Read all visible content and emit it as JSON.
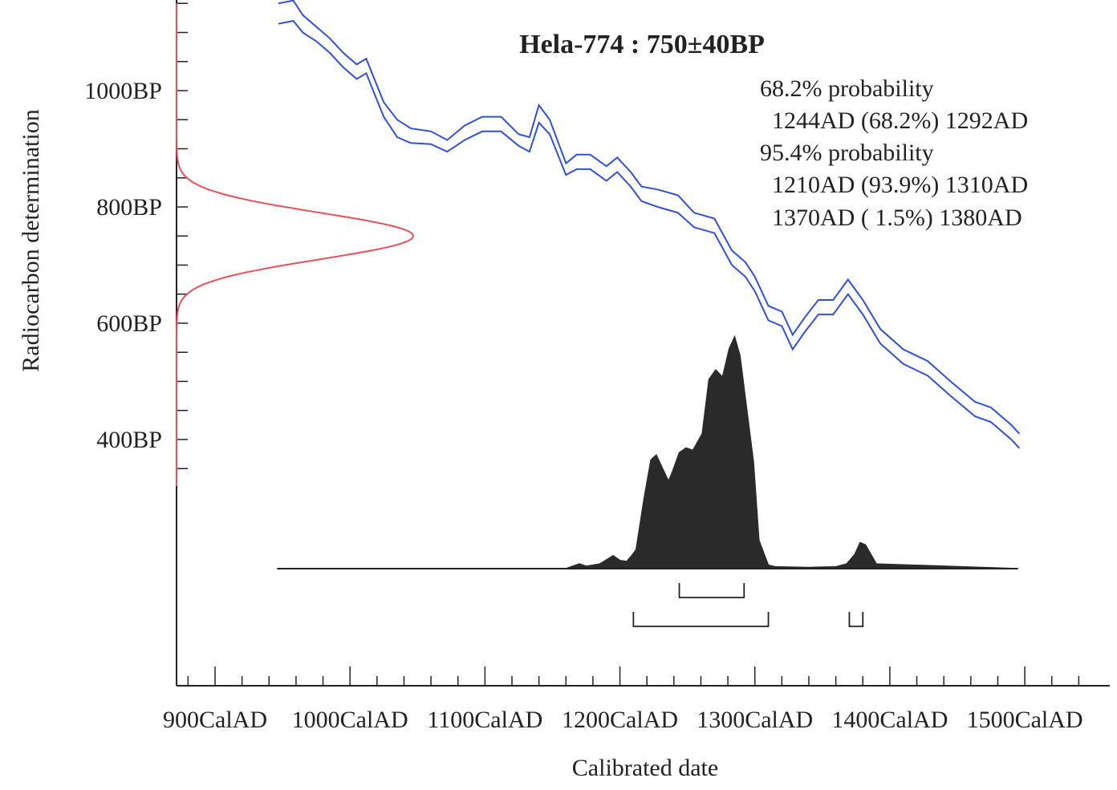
{
  "chart_data": {
    "type": "line",
    "title": "Hela-774 : 750±40BP",
    "xlabel": "Calibrated date",
    "ylabel": "Radiocarbon determination",
    "xlim": [
      873,
      1548
    ],
    "ylim": [
      1150,
      400
    ],
    "x_ticks": [
      {
        "value": 900,
        "label": "900CalAD"
      },
      {
        "value": 1000,
        "label": "1000CalAD"
      },
      {
        "value": 1100,
        "label": "1100CalAD"
      },
      {
        "value": 1200,
        "label": "1200CalAD"
      },
      {
        "value": 1300,
        "label": "1300CalAD"
      },
      {
        "value": 1400,
        "label": "1400CalAD"
      },
      {
        "value": 1500,
        "label": "1500CalAD"
      }
    ],
    "y_ticks": [
      {
        "value": 1000,
        "label": "1000BP"
      },
      {
        "value": 800,
        "label": "800BP"
      },
      {
        "value": 600,
        "label": "600BP"
      },
      {
        "value": 400,
        "label": "400BP"
      }
    ],
    "y_minor_step": 50,
    "x_minor_step": 20,
    "measurement": {
      "mean": 750,
      "sigma": 40,
      "color": "#e8505a"
    },
    "calibration_curve": {
      "color": "#3050d8",
      "x": [
        947,
        958,
        965,
        975,
        985,
        995,
        1005,
        1012,
        1018,
        1025,
        1035,
        1045,
        1060,
        1072,
        1085,
        1098,
        1112,
        1125,
        1133,
        1140,
        1148,
        1160,
        1168,
        1178,
        1190,
        1198,
        1208,
        1216,
        1228,
        1243,
        1255,
        1270,
        1283,
        1293,
        1300,
        1310,
        1320,
        1328,
        1337,
        1347,
        1358,
        1369,
        1380,
        1393,
        1410,
        1428,
        1445,
        1463,
        1475,
        1490,
        1496
      ],
      "upper": [
        1150,
        1155,
        1130,
        1110,
        1090,
        1065,
        1045,
        1055,
        1020,
        980,
        950,
        935,
        930,
        915,
        940,
        955,
        955,
        925,
        920,
        975,
        950,
        875,
        890,
        890,
        870,
        885,
        860,
        835,
        830,
        820,
        790,
        780,
        725,
        705,
        680,
        630,
        620,
        580,
        610,
        640,
        640,
        675,
        640,
        590,
        555,
        535,
        500,
        465,
        455,
        425,
        410
      ],
      "lower": [
        1115,
        1120,
        1100,
        1085,
        1065,
        1040,
        1020,
        1030,
        995,
        955,
        920,
        910,
        908,
        895,
        915,
        930,
        930,
        905,
        895,
        945,
        925,
        855,
        865,
        865,
        845,
        860,
        835,
        810,
        800,
        790,
        765,
        755,
        700,
        680,
        655,
        605,
        595,
        555,
        585,
        615,
        615,
        650,
        615,
        565,
        530,
        510,
        475,
        440,
        430,
        400,
        385
      ]
    },
    "calibrated_distribution": {
      "color": "#2a2a2a",
      "x": [
        946,
        1160,
        1165,
        1170,
        1175,
        1180,
        1185,
        1188,
        1195,
        1200,
        1205,
        1208,
        1212,
        1218,
        1223,
        1227,
        1231,
        1236,
        1239,
        1244,
        1249,
        1254,
        1261,
        1266,
        1271,
        1276,
        1281,
        1285,
        1289,
        1293,
        1299,
        1303,
        1310,
        1315,
        1340,
        1360,
        1368,
        1374,
        1378,
        1382,
        1390,
        1495
      ],
      "density": [
        0,
        0,
        0.01,
        0.02,
        0.01,
        0.015,
        0.02,
        0.03,
        0.055,
        0.035,
        0.03,
        0.05,
        0.08,
        0.3,
        0.46,
        0.48,
        0.43,
        0.37,
        0.41,
        0.49,
        0.51,
        0.5,
        0.57,
        0.8,
        0.84,
        0.81,
        0.93,
        0.98,
        0.9,
        0.72,
        0.45,
        0.12,
        0.015,
        0.008,
        0.005,
        0.008,
        0.02,
        0.06,
        0.11,
        0.1,
        0.02,
        0
      ]
    },
    "ranges": [
      {
        "probability": "68.2%",
        "from": 1244,
        "to": 1292
      },
      {
        "probability": "95.4%",
        "from": 1210,
        "to": 1310
      },
      {
        "probability": "95.4%",
        "from": 1370,
        "to": 1380
      }
    ],
    "annotation_lines": [
      "68.2% probability",
      "  1244AD (68.2%) 1292AD",
      "95.4% probability",
      "  1210AD (93.9%) 1310AD",
      "  1370AD ( 1.5%) 1380AD"
    ]
  }
}
